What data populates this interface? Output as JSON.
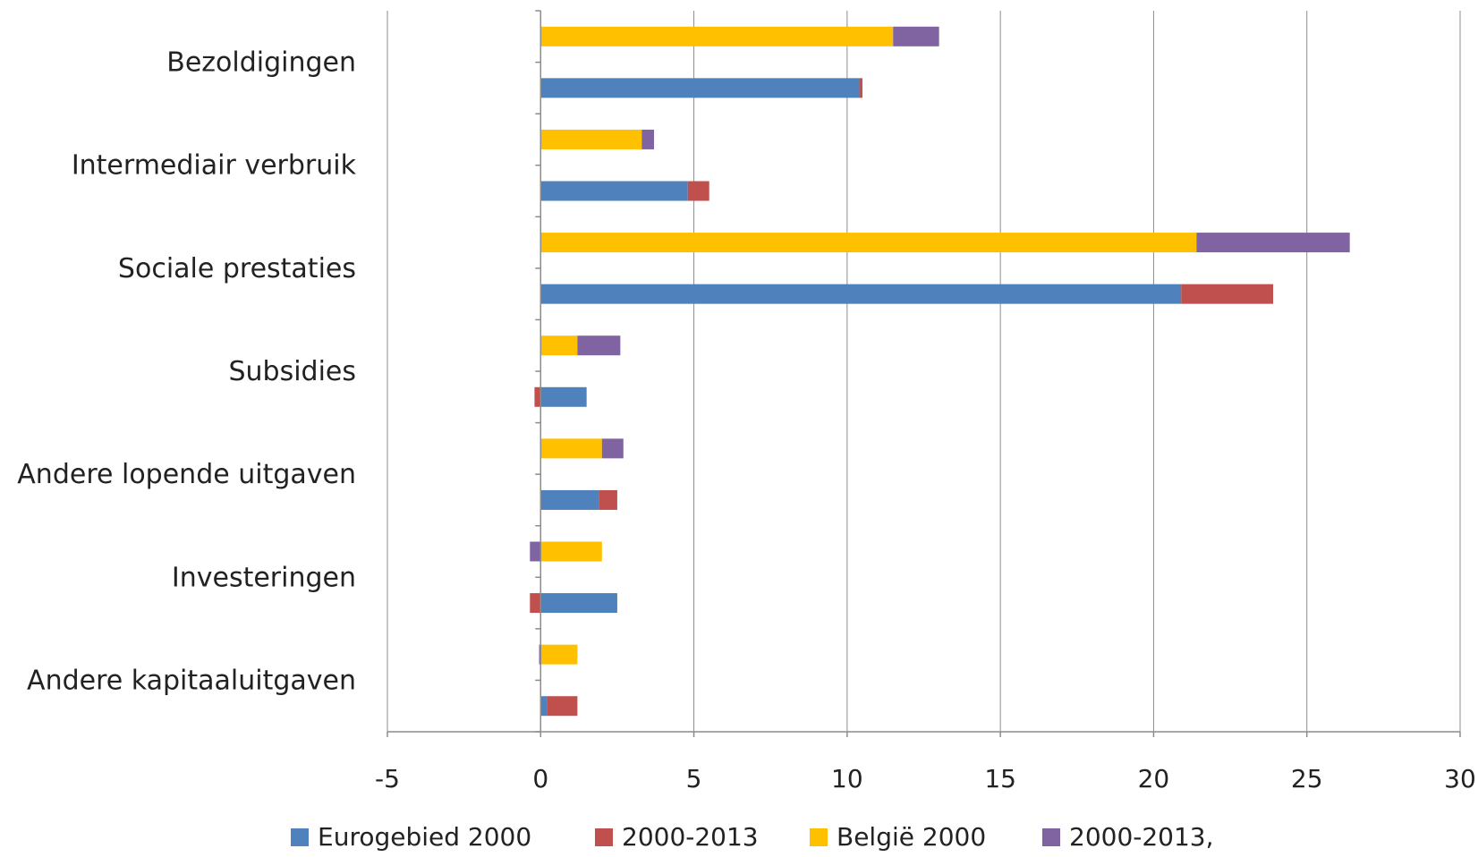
{
  "chart_data": {
    "type": "bar",
    "orientation": "horizontal",
    "stacked": true,
    "categories": [
      "Bezoldigingen",
      "Intermediair verbruik",
      "Sociale prestaties",
      "Subsidies",
      "Andere lopende uitgaven",
      "Investeringen",
      "Andere kapitaaluitgaven"
    ],
    "groups": [
      {
        "name": "Eurogebied",
        "series": [
          {
            "name": "Eurogebied 2000",
            "color": "#4F81BD",
            "values": [
              10.4,
              4.8,
              20.9,
              1.5,
              1.9,
              2.5,
              0.2
            ]
          },
          {
            "name": "2000-2013",
            "color": "#C0504D",
            "values": [
              0.1,
              0.7,
              3.0,
              -0.2,
              0.6,
              -0.35,
              1.0
            ]
          }
        ]
      },
      {
        "name": "België",
        "series": [
          {
            "name": "België 2000",
            "color": "#FFC000",
            "values": [
              11.5,
              3.3,
              21.4,
              1.2,
              2.0,
              2.0,
              1.2
            ]
          },
          {
            "name": "2000-2013,",
            "color": "#8064A2",
            "values": [
              1.5,
              0.4,
              5.0,
              1.4,
              0.7,
              -0.35,
              -0.05
            ]
          }
        ]
      }
    ],
    "legend": [
      "Eurogebied 2000",
      "2000-2013",
      "België 2000",
      "2000-2013,"
    ],
    "legend_position": "bottom",
    "xlim": [
      -5,
      30
    ],
    "x_ticks": [
      "-5",
      "0",
      "5",
      "10",
      "15",
      "20",
      "25",
      "30"
    ],
    "x_tick_values": [
      -5,
      0,
      5,
      10,
      15,
      20,
      25,
      30
    ],
    "grid": "vertical",
    "xlabel": "",
    "ylabel": ""
  }
}
